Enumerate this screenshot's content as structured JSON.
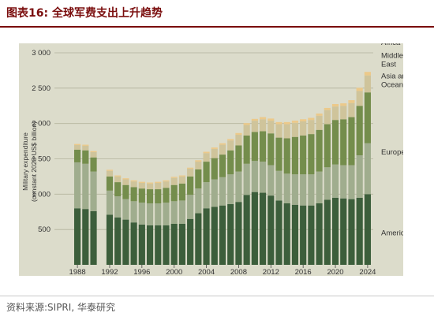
{
  "header": {
    "title": "图表16:  全球军费支出上升趋势"
  },
  "footer": {
    "source": "资料来源:SIPRI, 华泰研究"
  },
  "colors": {
    "panel_background": "#dcdccb",
    "header_accent": "#7a0d0d",
    "americas": "#3c5e3b",
    "europe": "#a0ad8e",
    "asia_and_oceania": "#748d4c",
    "middle_east": "#cfc49b",
    "africa": "#ecc98a"
  },
  "chart_data": {
    "type": "bar",
    "stacked": true,
    "title": "",
    "xlabel": "",
    "ylabel": "Military expenditure\n(constant 2023 US$ billion)",
    "ylim": [
      0,
      3000
    ],
    "yticks": [
      500,
      1000,
      1500,
      2000,
      2500,
      3000
    ],
    "ytick_labels": [
      "500",
      "1 000",
      "1 500",
      "2 000",
      "2 500",
      "3 000"
    ],
    "xtick_labels": [
      "1988",
      "1992",
      "1996",
      "2000",
      "2004",
      "2008",
      "2012",
      "2016",
      "2020",
      "2024"
    ],
    "grid": true,
    "legend_position": "right (labels beside the last bar)",
    "categories": [
      "1988",
      "1989",
      "1990",
      "1991",
      "1992",
      "1993",
      "1994",
      "1995",
      "1996",
      "1997",
      "1998",
      "1999",
      "2000",
      "2001",
      "2002",
      "2003",
      "2004",
      "2005",
      "2006",
      "2007",
      "2008",
      "2009",
      "2010",
      "2011",
      "2012",
      "2013",
      "2014",
      "2015",
      "2016",
      "2017",
      "2018",
      "2019",
      "2020",
      "2021",
      "2022",
      "2023",
      "2024"
    ],
    "series": [
      {
        "name": "Americas",
        "color": "#3c5e3b",
        "values": [
          800,
          790,
          760,
          null,
          710,
          670,
          640,
          600,
          570,
          560,
          560,
          560,
          580,
          580,
          650,
          730,
          800,
          820,
          840,
          860,
          890,
          990,
          1030,
          1020,
          980,
          910,
          870,
          850,
          840,
          840,
          870,
          920,
          950,
          940,
          930,
          950,
          1000
        ]
      },
      {
        "name": "Europe",
        "color": "#a0ad8e",
        "values": [
          650,
          640,
          560,
          null,
          340,
          300,
          290,
          300,
          310,
          310,
          310,
          320,
          320,
          330,
          340,
          350,
          370,
          390,
          400,
          420,
          430,
          440,
          440,
          440,
          430,
          420,
          420,
          430,
          440,
          440,
          450,
          460,
          470,
          470,
          480,
          600,
          720
        ]
      },
      {
        "name": "Asia and Oceania",
        "color": "#748d4c",
        "values": [
          180,
          190,
          200,
          null,
          200,
          200,
          200,
          200,
          200,
          200,
          200,
          210,
          230,
          240,
          260,
          270,
          290,
          300,
          320,
          340,
          370,
          400,
          410,
          430,
          450,
          470,
          500,
          530,
          550,
          570,
          590,
          610,
          630,
          650,
          680,
          700,
          720
        ]
      },
      {
        "name": "Middle East",
        "color": "#cfc49b",
        "values": [
          65,
          65,
          75,
          null,
          80,
          80,
          80,
          80,
          80,
          80,
          90,
          90,
          100,
          100,
          110,
          110,
          120,
          130,
          140,
          140,
          150,
          150,
          160,
          170,
          180,
          190,
          200,
          200,
          200,
          200,
          200,
          200,
          190,
          190,
          200,
          210,
          240
        ]
      },
      {
        "name": "Africa",
        "color": "#ecc98a",
        "values": [
          15,
          15,
          15,
          null,
          15,
          15,
          15,
          15,
          15,
          15,
          15,
          15,
          15,
          15,
          15,
          20,
          20,
          20,
          20,
          20,
          25,
          25,
          25,
          30,
          30,
          30,
          30,
          30,
          30,
          30,
          30,
          30,
          35,
          35,
          40,
          45,
          50
        ]
      }
    ],
    "legend": [
      "Africa",
      "Middle East",
      "Asia and Oceania",
      "Europe",
      "Americas"
    ]
  }
}
